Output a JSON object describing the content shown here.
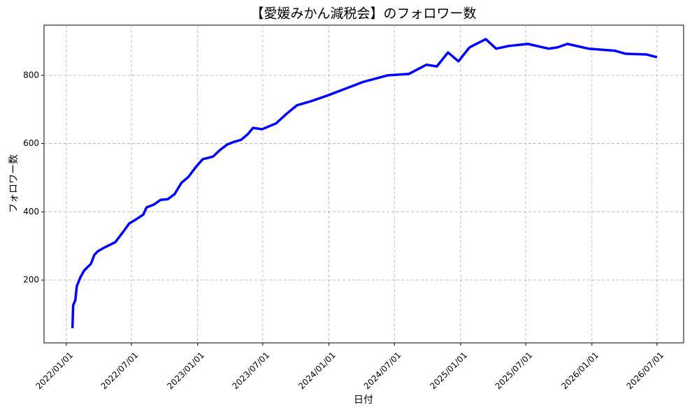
{
  "chart_data": {
    "type": "line",
    "title": "【愛媛みかん減税会】のフォロワー数",
    "x_label": "日付",
    "y_label": "フォロワー数",
    "color": "#0000ff",
    "grid": true,
    "x": [
      "2022-01-18",
      "2022-01-20",
      "2022-01-26",
      "2022-01-30",
      "2022-02-09",
      "2022-02-19",
      "2022-02-28",
      "2022-03-10",
      "2022-03-20",
      "2022-03-29",
      "2022-04-18",
      "2022-05-17",
      "2022-06-05",
      "2022-06-25",
      "2022-07-14",
      "2022-08-03",
      "2022-08-12",
      "2022-09-01",
      "2022-09-20",
      "2022-10-10",
      "2022-10-29",
      "2022-11-17",
      "2022-12-07",
      "2022-12-26",
      "2023-01-15",
      "2023-02-13",
      "2023-03-04",
      "2023-03-24",
      "2023-04-12",
      "2023-05-02",
      "2023-05-21",
      "2023-06-04",
      "2023-06-29",
      "2023-08-07",
      "2023-09-05",
      "2023-10-04",
      "2023-11-12",
      "2023-12-31",
      "2024-04-06",
      "2024-06-13",
      "2024-08-10",
      "2024-09-28",
      "2024-10-27",
      "2024-11-27",
      "2024-12-26",
      "2025-01-26",
      "2025-03-12",
      "2025-04-10",
      "2025-05-15",
      "2025-07-07",
      "2025-09-03",
      "2025-09-28",
      "2025-10-25",
      "2025-12-23",
      "2026-01-17",
      "2026-03-06",
      "2026-04-05",
      "2026-06-02",
      "2026-07-01"
    ],
    "values": [
      59,
      126,
      141,
      182,
      208,
      227,
      237,
      247,
      274,
      284,
      296,
      311,
      337,
      366,
      378,
      392,
      413,
      421,
      435,
      437,
      452,
      485,
      503,
      530,
      554,
      562,
      581,
      597,
      605,
      611,
      628,
      646,
      642,
      659,
      687,
      712,
      724,
      742,
      781,
      800,
      804,
      831,
      826,
      867,
      841,
      882,
      906,
      878,
      886,
      892,
      878,
      882,
      892,
      878,
      876,
      872,
      863,
      861,
      853
    ],
    "xlim": [
      "2021-10-31",
      "2026-09-13"
    ],
    "xticks": [
      {
        "value": "2022-01-01",
        "label": "2022/01/01"
      },
      {
        "value": "2022-07-01",
        "label": "2022/07/01"
      },
      {
        "value": "2023-01-01",
        "label": "2023/01/01"
      },
      {
        "value": "2023-07-01",
        "label": "2023/07/01"
      },
      {
        "value": "2024-01-01",
        "label": "2024/01/01"
      },
      {
        "value": "2024-07-01",
        "label": "2024/07/01"
      },
      {
        "value": "2025-01-01",
        "label": "2025/01/01"
      },
      {
        "value": "2025-07-01",
        "label": "2025/07/01"
      },
      {
        "value": "2026-01-01",
        "label": "2026/01/01"
      },
      {
        "value": "2026-07-01",
        "label": "2026/07/01"
      }
    ],
    "ylim": [
      16,
      947
    ],
    "yticks": [
      200,
      400,
      600,
      800
    ]
  }
}
